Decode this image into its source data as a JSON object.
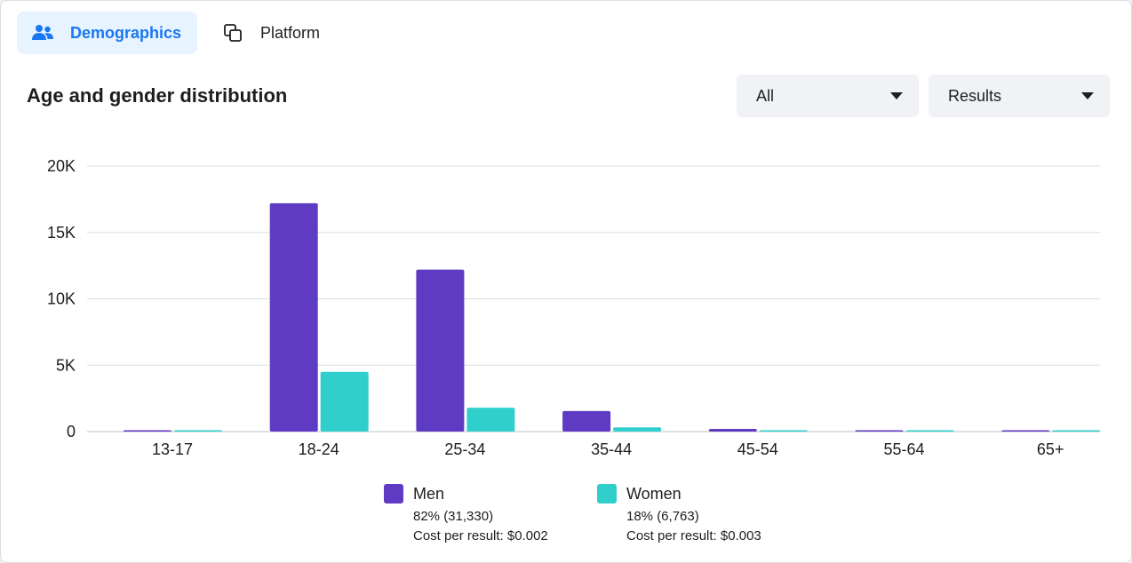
{
  "tabs": {
    "demographics": {
      "label": "Demographics",
      "icon": "people-icon"
    },
    "platform": {
      "label": "Platform",
      "icon": "platform-icon"
    }
  },
  "section_title": "Age and gender distribution",
  "filters": {
    "audience": {
      "selected": "All"
    },
    "metric": {
      "selected": "Results"
    }
  },
  "legend": [
    {
      "name": "Men",
      "share": "82% (31,330)",
      "cost": "Cost per result: $0.002",
      "color": "#5e3bc2"
    },
    {
      "name": "Women",
      "share": "18% (6,763)",
      "cost": "Cost per result: $0.003",
      "color": "#31cfcc"
    }
  ],
  "chart_data": {
    "type": "bar",
    "categories": [
      "13-17",
      "18-24",
      "25-34",
      "35-44",
      "45-54",
      "55-64",
      "65+"
    ],
    "series": [
      {
        "name": "Men",
        "color": "#5e3bc2",
        "values": [
          40,
          17200,
          12200,
          1550,
          200,
          30,
          50
        ]
      },
      {
        "name": "Women",
        "color": "#31cfcc",
        "values": [
          30,
          4500,
          1800,
          320,
          70,
          20,
          40
        ]
      }
    ],
    "ylim": [
      0,
      20000
    ],
    "yticks": [
      0,
      5000,
      10000,
      15000,
      20000
    ],
    "ytick_labels": [
      "0",
      "5K",
      "10K",
      "15K",
      "20K"
    ],
    "grid": true
  }
}
